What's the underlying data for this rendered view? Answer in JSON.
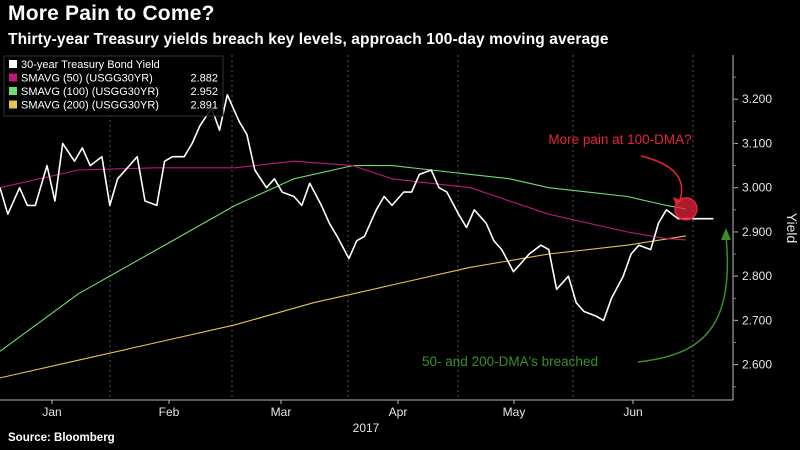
{
  "header": {
    "title": "More Pain to Come?",
    "subtitle": "Thirty-year Treasury yields breach key levels, approach 100-day moving average"
  },
  "footer": {
    "source": "Source: Bloomberg"
  },
  "colors": {
    "background": "#000000",
    "yield": "#ffffff",
    "sma50": "#c2177a",
    "sma100": "#6fdc6f",
    "sma200": "#e8c44a",
    "highlight": "#e8233c",
    "breach_arrow": "#3a8f2b"
  },
  "chart_data": {
    "type": "line",
    "title": "More Pain to Come?",
    "subtitle": "Thirty-year Treasury yields breach key levels, approach 100-day moving average",
    "xlabel": "2017",
    "ylabel": "Yield",
    "x_ticks": [
      "Jan",
      "Feb",
      "Mar",
      "Apr",
      "May",
      "Jun"
    ],
    "x_axis_year": "2017",
    "y_ticks": [
      "2.600",
      "2.700",
      "2.800",
      "2.900",
      "3.000",
      "3.100",
      "3.200"
    ],
    "ylim": [
      2.52,
      3.3
    ],
    "grid": "vertical dashed",
    "legend_position": "top-left",
    "legend": [
      {
        "label": "30-year Treasury Bond Yield",
        "value": "",
        "color": "#ffffff"
      },
      {
        "label": "SMAVG (50)  (USGG30YR)",
        "value": "2.882",
        "color": "#c2177a"
      },
      {
        "label": "SMAVG (100)  (USGG30YR)",
        "value": "2.952",
        "color": "#6fdc6f"
      },
      {
        "label": "SMAVG (200)  (USGG30YR)",
        "value": "2.891",
        "color": "#e8c44a"
      }
    ],
    "annotations": [
      {
        "text": "More pain at 100-DMA?",
        "color": "#e8233c"
      },
      {
        "text": "50- and 200-DMA's breached",
        "color": "#3a8f2b"
      }
    ],
    "series": [
      {
        "name": "30-year Treasury Bond Yield",
        "color": "#ffffff",
        "x": [
          0,
          2,
          5,
          7,
          9,
          12,
          14,
          16,
          19,
          21,
          23,
          26,
          28,
          30,
          33,
          35,
          37,
          40,
          42,
          44,
          47,
          49,
          51,
          54,
          56,
          58,
          61,
          63,
          65,
          68,
          70,
          72,
          75,
          77,
          79,
          82,
          84,
          86,
          89,
          91,
          93,
          96,
          98,
          100,
          103,
          105,
          107,
          110,
          112,
          114,
          117,
          119,
          121,
          124,
          126,
          128,
          131,
          133,
          135,
          138,
          140,
          142,
          145,
          147,
          149,
          152,
          154,
          156,
          159,
          161,
          163,
          166,
          168,
          170,
          173,
          175,
          177,
          180,
          182
        ],
        "values": [
          3.0,
          2.94,
          3.0,
          2.96,
          2.96,
          3.05,
          2.97,
          3.1,
          3.06,
          3.09,
          3.05,
          3.07,
          2.96,
          3.02,
          3.05,
          3.07,
          2.97,
          2.96,
          3.06,
          3.07,
          3.07,
          3.1,
          3.14,
          3.18,
          3.13,
          3.21,
          3.15,
          3.12,
          3.04,
          3.0,
          3.02,
          2.99,
          2.98,
          2.96,
          3.01,
          2.96,
          2.92,
          2.89,
          2.84,
          2.88,
          2.89,
          2.95,
          2.98,
          2.96,
          2.99,
          2.99,
          3.03,
          3.04,
          3.0,
          2.99,
          2.94,
          2.91,
          2.95,
          2.92,
          2.88,
          2.86,
          2.81,
          2.83,
          2.85,
          2.87,
          2.86,
          2.77,
          2.8,
          2.74,
          2.72,
          2.71,
          2.7,
          2.75,
          2.8,
          2.85,
          2.87,
          2.86,
          2.92,
          2.95,
          2.93,
          2.93,
          2.93,
          2.93,
          2.93
        ]
      },
      {
        "name": "SMAVG (50)  (USGG30YR)",
        "color": "#c2177a",
        "x": [
          0,
          20,
          40,
          60,
          75,
          90,
          100,
          110,
          120,
          130,
          140,
          150,
          160,
          170,
          175
        ],
        "values": [
          3.0,
          3.04,
          3.045,
          3.045,
          3.06,
          3.05,
          3.02,
          3.01,
          3.0,
          2.97,
          2.94,
          2.92,
          2.9,
          2.885,
          2.882
        ]
      },
      {
        "name": "SMAVG (100)  (USGG30YR)",
        "color": "#6fdc6f",
        "x": [
          0,
          20,
          40,
          60,
          75,
          90,
          100,
          110,
          120,
          130,
          140,
          150,
          160,
          170,
          175
        ],
        "values": [
          2.63,
          2.76,
          2.86,
          2.96,
          3.02,
          3.05,
          3.05,
          3.04,
          3.03,
          3.02,
          3.0,
          2.99,
          2.98,
          2.96,
          2.952
        ]
      },
      {
        "name": "SMAVG (200)  (USGG30YR)",
        "color": "#e8c44a",
        "x": [
          0,
          20,
          40,
          60,
          80,
          100,
          120,
          140,
          160,
          175
        ],
        "values": [
          2.57,
          2.61,
          2.65,
          2.69,
          2.74,
          2.78,
          2.82,
          2.85,
          2.87,
          2.891
        ]
      }
    ]
  }
}
